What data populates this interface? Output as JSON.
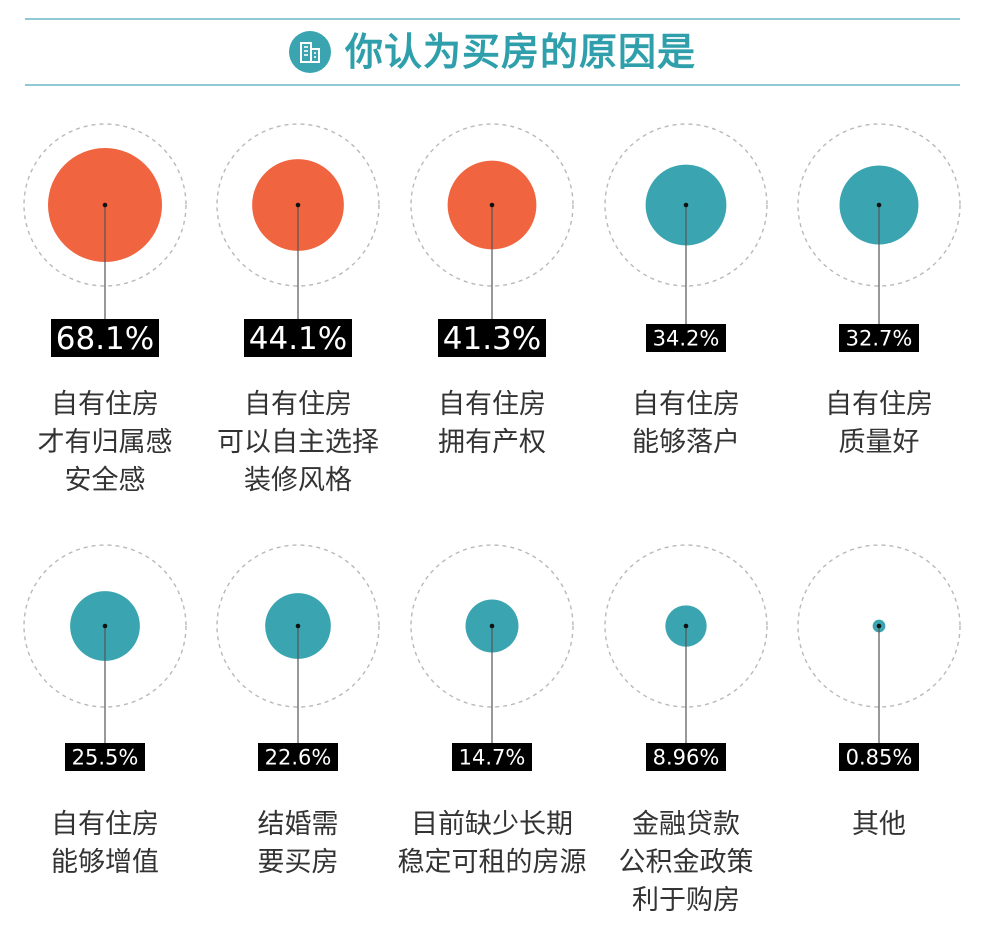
{
  "title": "你认为买房的原因是",
  "colors": {
    "accent_teal": "#3aa5b0",
    "title_teal": "#2f9fab",
    "highlight_orange": "#f0643f",
    "badge_bg": "#000000",
    "badge_text": "#ffffff",
    "dashed_ring": "#b9b9b9",
    "rule": "#8fc9d3"
  },
  "title_icon": "building-icon",
  "chart_data": {
    "type": "bubble",
    "title": "你认为买房的原因是",
    "unit": "%",
    "categories": [
      "自有住房\n才有归属感\n安全感",
      "自有住房\n可以自主选择\n装修风格",
      "自有住房\n拥有产权",
      "自有住房\n能够落户",
      "自有住房\n质量好",
      "自有住房\n能够增值",
      "结婚需\n要买房",
      "目前缺少长期\n稳定可租的房源",
      "金融贷款\n公积金政策\n利于购房",
      "其他"
    ],
    "values": [
      68.1,
      44.1,
      41.3,
      34.2,
      32.7,
      25.5,
      22.6,
      14.7,
      8.96,
      0.85
    ],
    "value_labels": [
      "68.1%",
      "44.1%",
      "41.3%",
      "34.2%",
      "32.7%",
      "25.5%",
      "22.6%",
      "14.7%",
      "8.96%",
      "0.85%"
    ],
    "highlight_count": 3
  }
}
